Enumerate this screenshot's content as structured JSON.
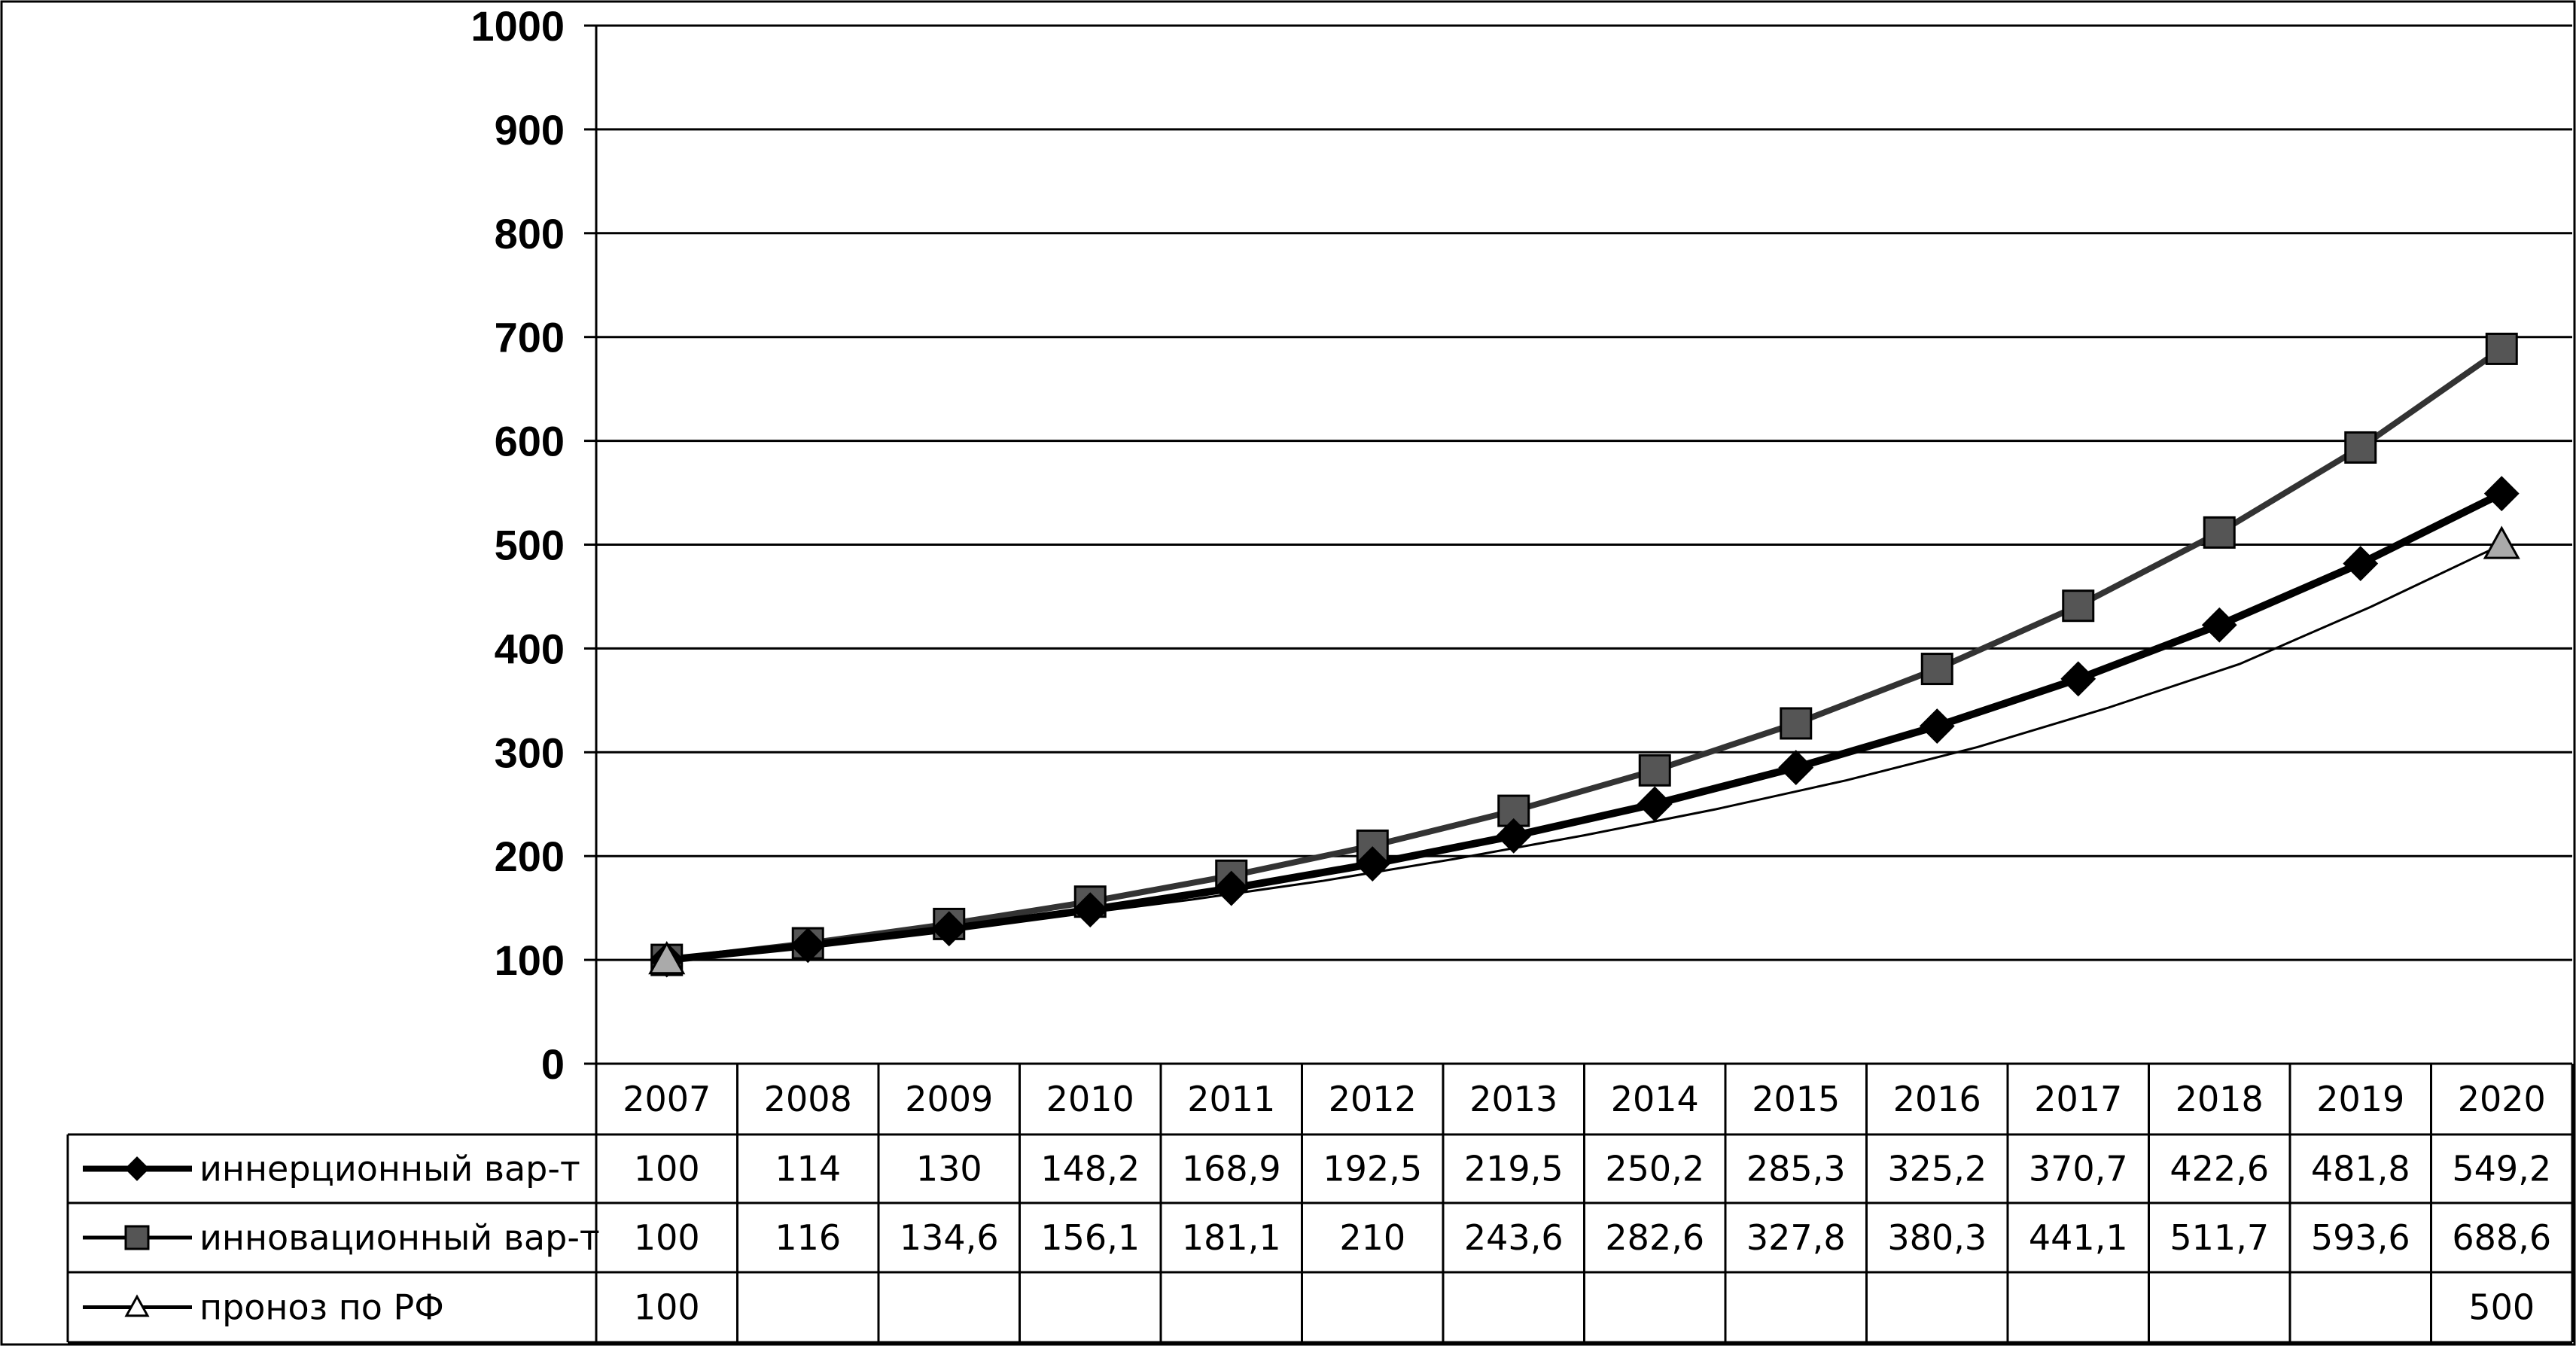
{
  "chart_data": {
    "type": "line",
    "title": "",
    "xlabel": "",
    "ylabel": "",
    "ylim": [
      0,
      1000
    ],
    "yticks": [
      0,
      100,
      200,
      300,
      400,
      500,
      600,
      700,
      800,
      900,
      1000
    ],
    "grid": "horizontal",
    "legend": "data-table-below",
    "categories": [
      "2007",
      "2008",
      "2009",
      "2010",
      "2011",
      "2012",
      "2013",
      "2014",
      "2015",
      "2016",
      "2017",
      "2018",
      "2019",
      "2020"
    ],
    "series": [
      {
        "name": "иннерционный вар-т",
        "marker": "diamond",
        "color": "#000000",
        "values": [
          100,
          114,
          130,
          148.2,
          168.9,
          192.5,
          219.5,
          250.2,
          285.3,
          325.2,
          370.7,
          422.6,
          481.8,
          549.2
        ],
        "labels": [
          "100",
          "114",
          "130",
          "148,2",
          "168,9",
          "192,5",
          "219,5",
          "250,2",
          "285,3",
          "325,2",
          "370,7",
          "422,6",
          "481,8",
          "549,2"
        ]
      },
      {
        "name": "инновационный вар-т",
        "marker": "square",
        "color": "#3a3a3a",
        "values": [
          100,
          116,
          134.6,
          156.1,
          181.1,
          210,
          243.6,
          282.6,
          327.8,
          380.3,
          441.1,
          511.7,
          593.6,
          688.6
        ],
        "labels": [
          "100",
          "116",
          "134,6",
          "156,1",
          "181,1",
          "210",
          "243,6",
          "282,6",
          "327,8",
          "380,3",
          "441,1",
          "511,7",
          "593,6",
          "688,6"
        ]
      },
      {
        "name": "проноз по РФ",
        "marker": "triangle",
        "color": "#000000",
        "values": [
          100,
          null,
          null,
          null,
          null,
          null,
          null,
          null,
          null,
          null,
          null,
          null,
          null,
          500
        ],
        "labels": [
          "100",
          "",
          "",
          "",
          "",
          "",
          "",
          "",
          "",
          "",
          "",
          "",
          "",
          "500"
        ],
        "trend": [
          100,
          113,
          127,
          142,
          158,
          176,
          197,
          220,
          245,
          273,
          305,
          343,
          385,
          440,
          500
        ]
      }
    ]
  }
}
